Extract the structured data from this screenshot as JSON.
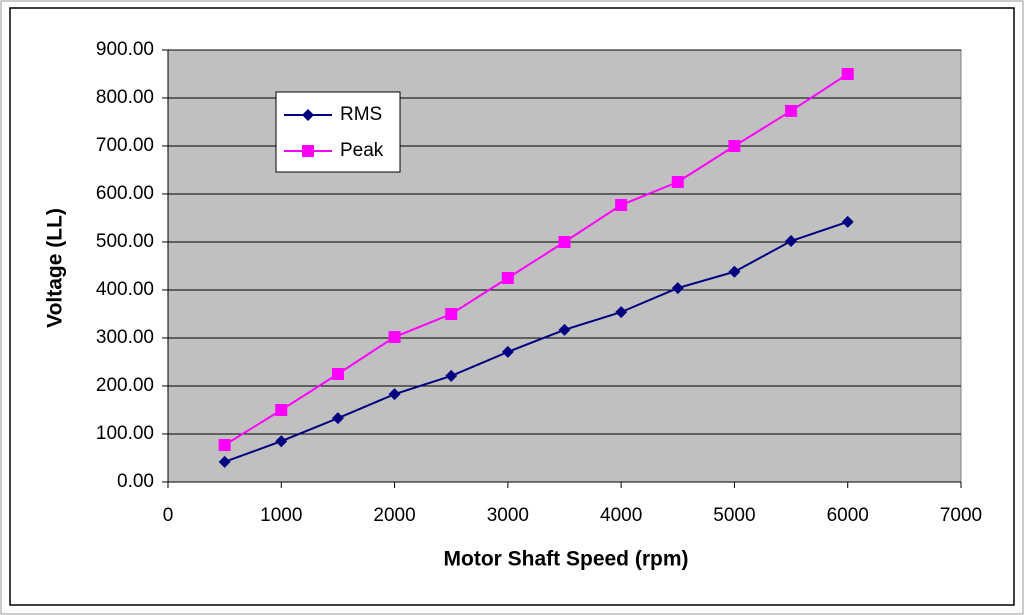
{
  "chart_data": {
    "type": "line",
    "x_label": "Motor Shaft Speed (rpm)",
    "y_label": "Voltage (LL)",
    "x": [
      500,
      1000,
      1500,
      2000,
      2500,
      3000,
      3500,
      4000,
      4500,
      5000,
      5500,
      6000
    ],
    "series": [
      {
        "name": "RMS",
        "color": "#000080",
        "marker": "diamond",
        "values": [
          42,
          85,
          133,
          183,
          221,
          271,
          317,
          354,
          404,
          438,
          502,
          542
        ]
      },
      {
        "name": "Peak",
        "color": "#ff00ff",
        "marker": "square",
        "values": [
          77,
          150,
          225,
          302,
          350,
          425,
          500,
          577,
          625,
          700,
          773,
          850
        ]
      }
    ],
    "xlim": [
      0,
      7000
    ],
    "xticks": [
      0,
      1000,
      2000,
      3000,
      4000,
      5000,
      6000,
      7000
    ],
    "ylim": [
      0,
      900
    ],
    "yticks": [
      {
        "value": 0,
        "label": "0.00"
      },
      {
        "value": 100,
        "label": "100.00"
      },
      {
        "value": 200,
        "label": "200.00"
      },
      {
        "value": 300,
        "label": "300.00"
      },
      {
        "value": 400,
        "label": "400.00"
      },
      {
        "value": 500,
        "label": "500.00"
      },
      {
        "value": 600,
        "label": "600.00"
      },
      {
        "value": 700,
        "label": "700.00"
      },
      {
        "value": 800,
        "label": "800.00"
      },
      {
        "value": 900,
        "label": "900.00"
      }
    ],
    "grid": true,
    "legend": "upper left"
  }
}
